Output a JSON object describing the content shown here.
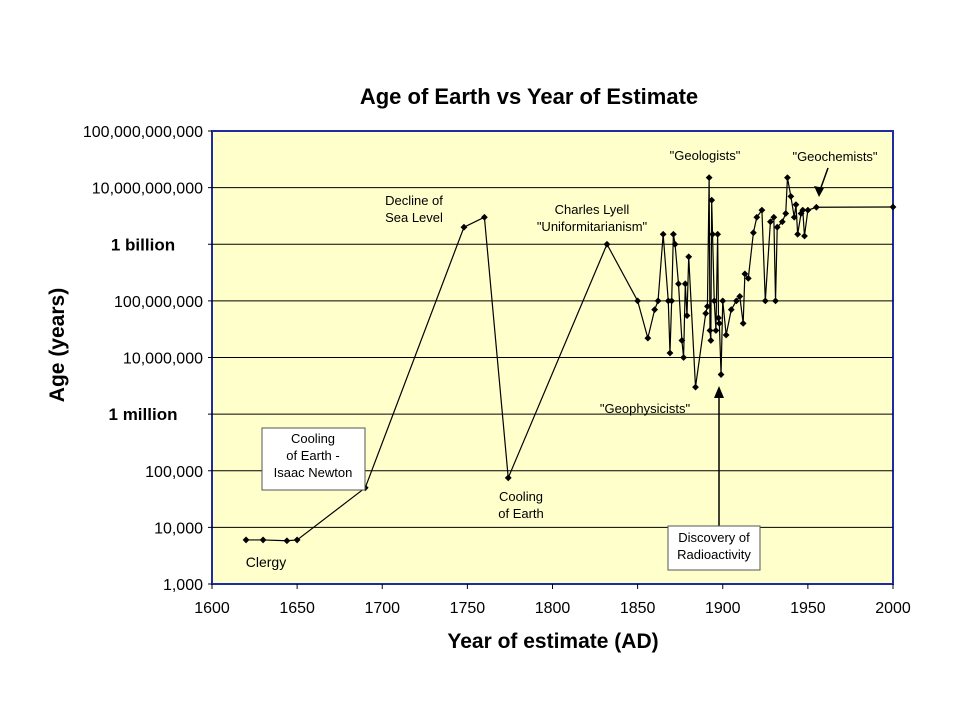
{
  "chart_data": {
    "type": "line",
    "title": "Age of Earth vs Year of Estimate",
    "xlabel": "Year of estimate (AD)",
    "ylabel": "Age (years)",
    "xlim": [
      1600,
      2000
    ],
    "ylim": [
      1000,
      100000000000
    ],
    "yscale": "log",
    "grid": "horizontal",
    "legend": "none",
    "colors": {
      "plot_background": "#ffffcc",
      "line": "#000000",
      "frame": "#1f2aa5"
    },
    "x_ticks": [
      "1600",
      "1650",
      "1700",
      "1750",
      "1800",
      "1850",
      "1900",
      "1950",
      "2000"
    ],
    "y_ticks": [
      {
        "value": 1000,
        "label": "1,000"
      },
      {
        "value": 10000,
        "label": "10,000"
      },
      {
        "value": 100000,
        "label": "100,000"
      },
      {
        "value": 1000000,
        "label": "1 million",
        "bold": true
      },
      {
        "value": 10000000,
        "label": "10,000,000"
      },
      {
        "value": 100000000,
        "label": "100,000,000"
      },
      {
        "value": 1000000000,
        "label": "1 billion",
        "bold": true
      },
      {
        "value": 10000000000,
        "label": "10,000,000,000"
      },
      {
        "value": 100000000000,
        "label": "100,000,000,000"
      }
    ],
    "series": [
      {
        "points": [
          [
            1620,
            6000
          ],
          [
            1630,
            6000
          ],
          [
            1644,
            5800
          ],
          [
            1650,
            6000
          ],
          [
            1690,
            50000
          ],
          [
            1748,
            2000000000
          ],
          [
            1760,
            3000000000
          ],
          [
            1774,
            75000
          ],
          [
            1832,
            1000000000
          ],
          [
            1850,
            100000000
          ],
          [
            1856,
            22000000
          ],
          [
            1860,
            70000000
          ],
          [
            1862,
            100000000
          ],
          [
            1865,
            1500000000
          ],
          [
            1868,
            100000000
          ],
          [
            1869,
            12000000
          ],
          [
            1870,
            100000000
          ],
          [
            1871,
            1500000000
          ],
          [
            1872,
            1000000000
          ],
          [
            1874,
            200000000
          ],
          [
            1876,
            20000000
          ],
          [
            1877,
            10000000
          ],
          [
            1878,
            200000000
          ],
          [
            1879,
            55000000
          ],
          [
            1880,
            600000000
          ],
          [
            1884,
            3000000
          ],
          [
            1890,
            60000000
          ],
          [
            1891,
            80000000
          ],
          [
            1892,
            15000000000
          ],
          [
            1892.5,
            30000000
          ],
          [
            1893,
            20000000
          ],
          [
            1893.5,
            6000000000
          ],
          [
            1894,
            1500000000
          ],
          [
            1895,
            100000000
          ],
          [
            1896,
            30000000
          ],
          [
            1897,
            1500000000
          ],
          [
            1897.5,
            50000000
          ],
          [
            1898,
            40000000
          ],
          [
            1899,
            5000000
          ],
          [
            1900,
            100000000
          ],
          [
            1902,
            25000000
          ],
          [
            1905,
            70000000
          ],
          [
            1908,
            100000000
          ],
          [
            1910,
            120000000
          ],
          [
            1912,
            40000000
          ],
          [
            1913,
            300000000
          ],
          [
            1915,
            250000000
          ],
          [
            1918,
            1600000000
          ],
          [
            1920,
            3000000000
          ],
          [
            1923,
            4000000000
          ],
          [
            1925,
            100000000
          ],
          [
            1928,
            2500000000
          ],
          [
            1930,
            3000000000
          ],
          [
            1931,
            100000000
          ],
          [
            1932,
            2000000000
          ],
          [
            1935,
            2500000000
          ],
          [
            1937,
            3500000000
          ],
          [
            1938,
            15000000000
          ],
          [
            1940,
            7000000000
          ],
          [
            1942,
            3000000000
          ],
          [
            1943,
            5000000000
          ],
          [
            1944,
            1500000000
          ],
          [
            1946,
            3500000000
          ],
          [
            1947,
            4000000000
          ],
          [
            1948,
            1400000000
          ],
          [
            1950,
            4000000000
          ],
          [
            1955,
            4500000000
          ],
          [
            2000,
            4550000000
          ]
        ]
      }
    ],
    "annotations": [
      {
        "lines": [
          "Clergy"
        ]
      },
      {
        "lines": [
          "Cooling",
          "of Earth -",
          "Isaac Newton"
        ]
      },
      {
        "lines": [
          "Decline of",
          "Sea Level"
        ]
      },
      {
        "lines": [
          "Cooling",
          "of Earth"
        ]
      },
      {
        "lines": [
          "Charles Lyell",
          "\"Uniformitarianism\""
        ]
      },
      {
        "lines": [
          "\"Geologists\""
        ]
      },
      {
        "lines": [
          "\"Geochemists\""
        ]
      },
      {
        "lines": [
          "\"Geophysicists\""
        ]
      },
      {
        "lines": [
          "Discovery of",
          "Radioactivity"
        ]
      }
    ]
  }
}
